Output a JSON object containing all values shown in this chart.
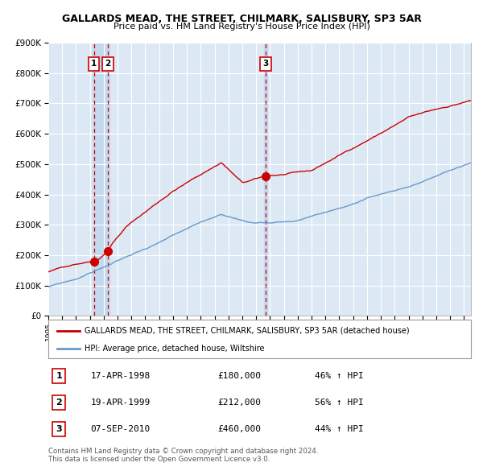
{
  "title": "GALLARDS MEAD, THE STREET, CHILMARK, SALISBURY, SP3 5AR",
  "subtitle": "Price paid vs. HM Land Registry's House Price Index (HPI)",
  "red_label": "GALLARDS MEAD, THE STREET, CHILMARK, SALISBURY, SP3 5AR (detached house)",
  "blue_label": "HPI: Average price, detached house, Wiltshire",
  "footer1": "Contains HM Land Registry data © Crown copyright and database right 2024.",
  "footer2": "This data is licensed under the Open Government Licence v3.0.",
  "transactions": [
    {
      "num": 1,
      "date": "17-APR-1998",
      "price": 180000,
      "pct": "46%",
      "dir": "↑",
      "year": 1998.29
    },
    {
      "num": 2,
      "date": "19-APR-1999",
      "price": 212000,
      "pct": "56%",
      "dir": "↑",
      "year": 1999.29
    },
    {
      "num": 3,
      "date": "07-SEP-2010",
      "price": 460000,
      "pct": "44%",
      "dir": "↑",
      "year": 2010.68
    }
  ],
  "ylim": [
    0,
    900000
  ],
  "xlim_start": 1995.0,
  "xlim_end": 2025.5,
  "plot_bg_color": "#dce9f5",
  "grid_color": "#ffffff",
  "red_color": "#cc0000",
  "blue_color": "#6699cc",
  "vline_color": "#cc0000",
  "highlight_color": "#c5d9ee",
  "hpi_seed": 99,
  "red_seed": 42,
  "n_pts": 370
}
